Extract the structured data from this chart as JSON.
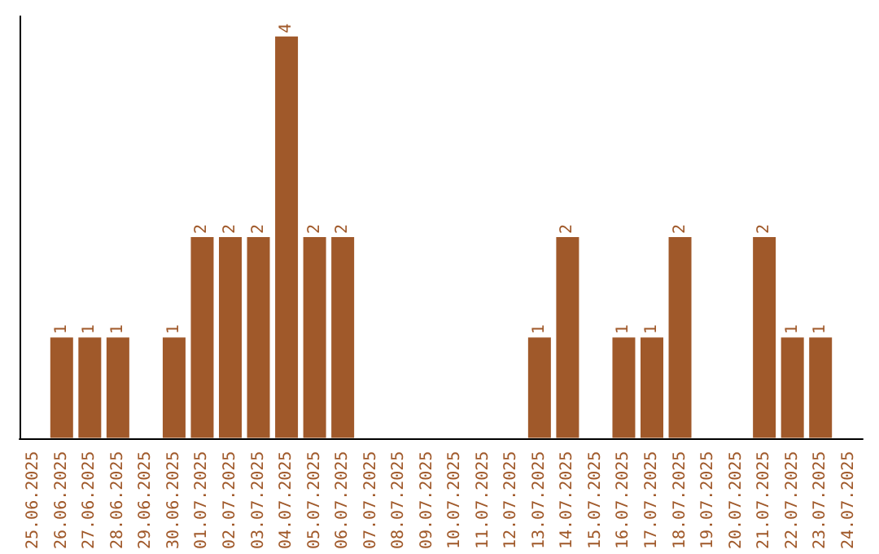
{
  "chart_data": {
    "type": "bar",
    "categories": [
      "25.06.2025",
      "26.06.2025",
      "27.06.2025",
      "28.06.2025",
      "29.06.2025",
      "30.06.2025",
      "01.07.2025",
      "02.07.2025",
      "03.07.2025",
      "04.07.2025",
      "05.07.2025",
      "06.07.2025",
      "07.07.2025",
      "08.07.2025",
      "09.07.2025",
      "10.07.2025",
      "11.07.2025",
      "12.07.2025",
      "13.07.2025",
      "14.07.2025",
      "15.07.2025",
      "16.07.2025",
      "17.07.2025",
      "18.07.2025",
      "19.07.2025",
      "20.07.2025",
      "21.07.2025",
      "22.07.2025",
      "23.07.2025",
      "24.07.2025"
    ],
    "values": [
      0,
      1,
      1,
      1,
      0,
      1,
      2,
      2,
      2,
      4,
      2,
      2,
      0,
      0,
      0,
      0,
      0,
      0,
      1,
      2,
      0,
      1,
      1,
      2,
      0,
      0,
      2,
      1,
      1,
      0
    ],
    "value_labels": [
      null,
      "1",
      "1",
      "1",
      null,
      "1",
      "2",
      "2",
      "2",
      "4",
      "2",
      "2",
      null,
      null,
      null,
      null,
      null,
      null,
      "1",
      "2",
      null,
      "1",
      "1",
      "2",
      null,
      null,
      "2",
      "1",
      "1",
      null
    ],
    "color": "#a0592a",
    "ylim": [
      0,
      4.2
    ],
    "tick_labels": "x"
  }
}
